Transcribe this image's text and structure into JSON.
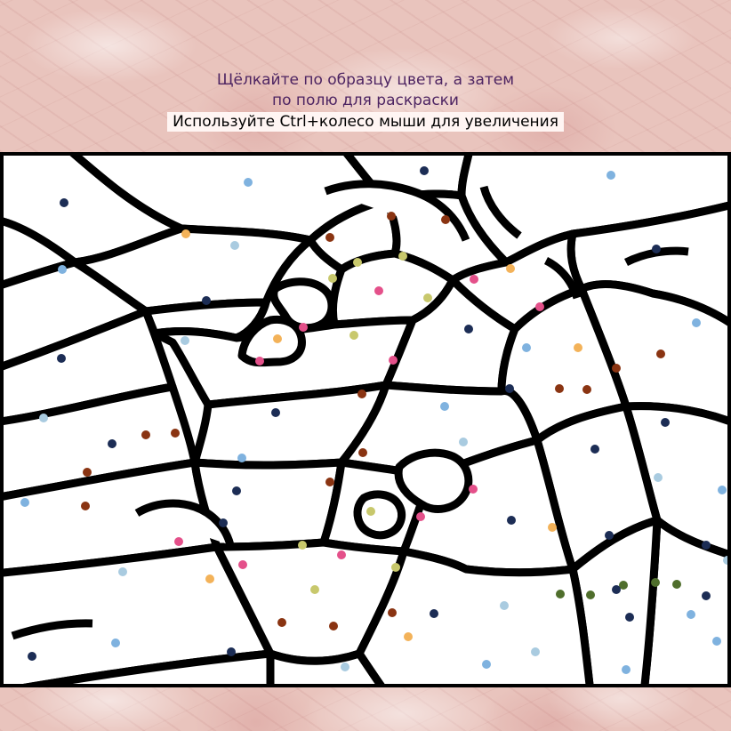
{
  "instructions": {
    "line1": "Щёлкайте по образцу цвета, а затем",
    "line2": "по полю для раскраски",
    "zoom_hint": "Используйте Ctrl+колесо мыши для увеличения"
  },
  "palette": {
    "navy": "#1c2d55",
    "sky": "#7fb2df",
    "pale_blue": "#a9cbe0",
    "brown": "#8a3412",
    "olive_yellow": "#c8c86c",
    "pink": "#e4508a",
    "orange": "#f3b259",
    "green": "#4f6e2c"
  },
  "colors": {
    "line": "#000000",
    "paper": "#ffffff",
    "instruction_text": "#4d2462"
  }
}
